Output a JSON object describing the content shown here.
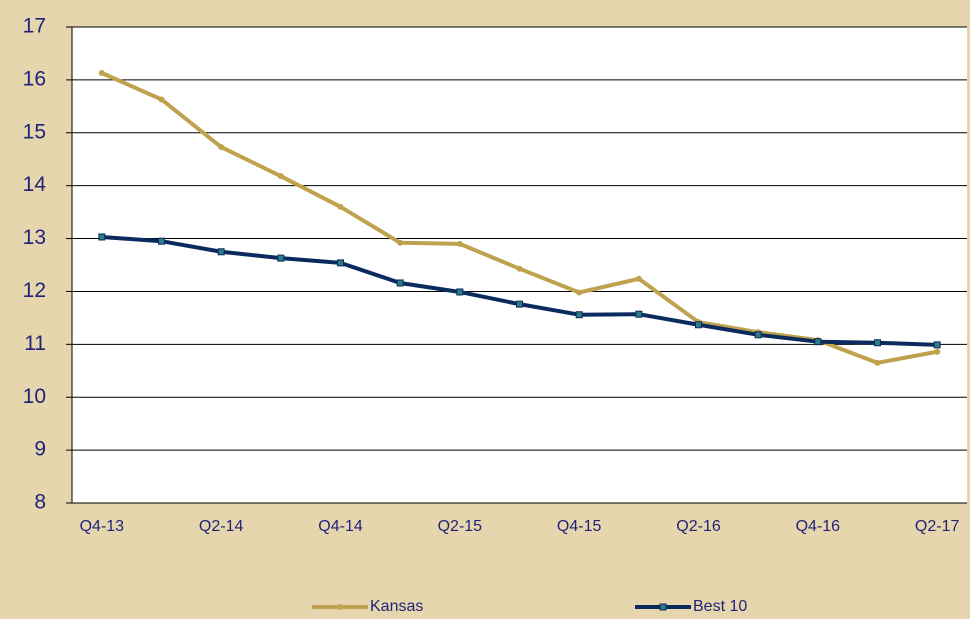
{
  "chart_data": {
    "type": "line",
    "categories": [
      "Q4-13",
      null,
      "Q2-14",
      null,
      "Q4-14",
      null,
      "Q2-15",
      null,
      "Q4-15",
      null,
      "Q2-16",
      null,
      "Q4-16",
      null,
      "Q2-17"
    ],
    "series": [
      {
        "name": "Kansas",
        "color": "#bfa24e",
        "marker": "circle",
        "values": [
          16.13,
          15.63,
          14.73,
          14.18,
          13.6,
          12.92,
          12.9,
          12.43,
          11.98,
          12.24,
          11.42,
          11.23,
          11.08,
          10.65,
          10.86
        ]
      },
      {
        "name": "Best 10",
        "color": "#0b2a5e",
        "marker": "square",
        "values": [
          13.03,
          12.95,
          12.75,
          12.63,
          12.54,
          12.16,
          11.99,
          11.76,
          11.56,
          11.57,
          11.37,
          11.18,
          11.05,
          11.03,
          10.99
        ]
      }
    ],
    "ylim": [
      8,
      17
    ],
    "yticks": [
      8,
      9,
      10,
      11,
      12,
      13,
      14,
      15,
      16,
      17
    ],
    "grid": true,
    "legend": "bottom"
  }
}
